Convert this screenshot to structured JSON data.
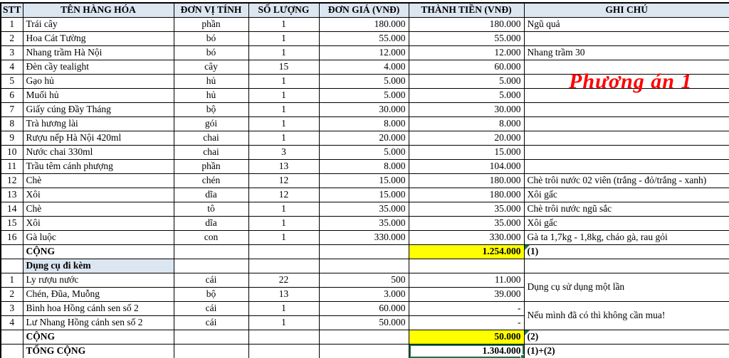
{
  "annotation": {
    "text": "Phương án 1",
    "color": "#ff0000"
  },
  "colors": {
    "header_bg": "#dce6f1",
    "sum_highlight": "#ffff00",
    "flag_triangle": "#1e7145",
    "selection_border": "#217346",
    "grid_border": "#000000"
  },
  "table": {
    "columns": [
      {
        "label": "STT"
      },
      {
        "label": "TÊN HÀNG HÓA"
      },
      {
        "label": "ĐƠN VỊ TÍNH"
      },
      {
        "label": "SỐ LƯỢNG"
      },
      {
        "label": "ĐƠN GIÁ (VNĐ)"
      },
      {
        "label": "THÀNH TIỀN (VNĐ)"
      },
      {
        "label": "GHI CHÚ"
      }
    ],
    "rows": [
      {
        "type": "item",
        "stt": "1",
        "name": "Trái cây",
        "unit": "phần",
        "qty": "1",
        "price": "180.000",
        "total": "180.000",
        "note": "Ngũ quả"
      },
      {
        "type": "item",
        "stt": "2",
        "name": "Hoa Cát Tường",
        "unit": "bó",
        "qty": "1",
        "price": "55.000",
        "total": "55.000",
        "note": ""
      },
      {
        "type": "item",
        "stt": "3",
        "name": "Nhang trầm Hà Nội",
        "unit": "bó",
        "qty": "1",
        "price": "12.000",
        "total": "12.000",
        "note": "Nhang trầm 30"
      },
      {
        "type": "item",
        "stt": "4",
        "name": "Đèn cầy tealight",
        "unit": "cây",
        "qty": "15",
        "price": "4.000",
        "total": "60.000",
        "note": ""
      },
      {
        "type": "item",
        "stt": "5",
        "name": "Gạo hủ",
        "unit": "hủ",
        "qty": "1",
        "price": "5.000",
        "total": "5.000",
        "note": ""
      },
      {
        "type": "item",
        "stt": "6",
        "name": "Muối hủ",
        "unit": "hủ",
        "qty": "1",
        "price": "5.000",
        "total": "5.000",
        "note": ""
      },
      {
        "type": "item",
        "stt": "7",
        "name": "Giấy cúng Đầy Tháng",
        "unit": "bộ",
        "qty": "1",
        "price": "30.000",
        "total": "30.000",
        "note": ""
      },
      {
        "type": "item",
        "stt": "8",
        "name": "Trà hương lài",
        "unit": "gói",
        "qty": "1",
        "price": "8.000",
        "total": "8.000",
        "note": ""
      },
      {
        "type": "item",
        "stt": "9",
        "name": "Rượu nếp Hà Nội 420ml",
        "unit": "chai",
        "qty": "1",
        "price": "20.000",
        "total": "20.000",
        "note": ""
      },
      {
        "type": "item",
        "stt": "10",
        "name": "Nước chai 330ml",
        "unit": "chai",
        "qty": "3",
        "price": "5.000",
        "total": "15.000",
        "note": ""
      },
      {
        "type": "item",
        "stt": "11",
        "name": "Trầu têm cánh phượng",
        "unit": "phần",
        "qty": "13",
        "price": "8.000",
        "total": "104.000",
        "note": ""
      },
      {
        "type": "item",
        "stt": "12",
        "name": "Chè",
        "unit": "chén",
        "qty": "12",
        "price": "15.000",
        "total": "180.000",
        "note": "Chè trôi nước 02 viên (trắng - đỏ/trắng - xanh)"
      },
      {
        "type": "item",
        "stt": "13",
        "name": "Xôi",
        "unit": "dĩa",
        "qty": "12",
        "price": "15.000",
        "total": "180.000",
        "note": "Xôi gấc"
      },
      {
        "type": "item",
        "stt": "14",
        "name": "Chè",
        "unit": "tô",
        "qty": "1",
        "price": "35.000",
        "total": "35.000",
        "note": "Chè trôi nước ngũ sắc"
      },
      {
        "type": "item",
        "stt": "15",
        "name": "Xôi",
        "unit": "dĩa",
        "qty": "1",
        "price": "35.000",
        "total": "35.000",
        "note": "Xôi gấc"
      },
      {
        "type": "item",
        "stt": "16",
        "name": "Gà luộc",
        "unit": "con",
        "qty": "1",
        "price": "330.000",
        "total": "330.000",
        "note": "Gà ta 1,7kg - 1,8kg, cháo gà, rau gỏi"
      },
      {
        "type": "sum",
        "label": "CỘNG",
        "total": "1.254.000",
        "note": "(1)"
      },
      {
        "type": "section",
        "label": "Dụng cụ đi kèm"
      },
      {
        "type": "item",
        "stt": "1",
        "name": "Ly rượu nước",
        "unit": "cái",
        "qty": "22",
        "price": "500",
        "total": "11.000",
        "note": "Dụng cụ sử dụng một lần",
        "note_rowspan": 2
      },
      {
        "type": "item",
        "stt": "2",
        "name": "Chén, Đũa, Muỗng",
        "unit": "bộ",
        "qty": "13",
        "price": "3.000",
        "total": "39.000",
        "note_skip": true
      },
      {
        "type": "item",
        "stt": "3",
        "name": "Bình hoa Hồng cánh sen số 2",
        "unit": "cái",
        "qty": "1",
        "price": "60.000",
        "total": "-",
        "dash": true,
        "note": "Nếu mình đã có thì không cần mua!",
        "note_rowspan": 2
      },
      {
        "type": "item",
        "stt": "4",
        "name": "Lư Nhang Hồng cánh sen số 2",
        "unit": "cái",
        "qty": "1",
        "price": "50.000",
        "total": "-",
        "dash": true,
        "note_skip": true
      },
      {
        "type": "sum",
        "label": "CỘNG",
        "total": "50.000",
        "note": "(2)"
      },
      {
        "type": "grand",
        "label": "TỔNG CỘNG",
        "total": "1.304.000",
        "note": "(1)+(2)"
      }
    ]
  }
}
